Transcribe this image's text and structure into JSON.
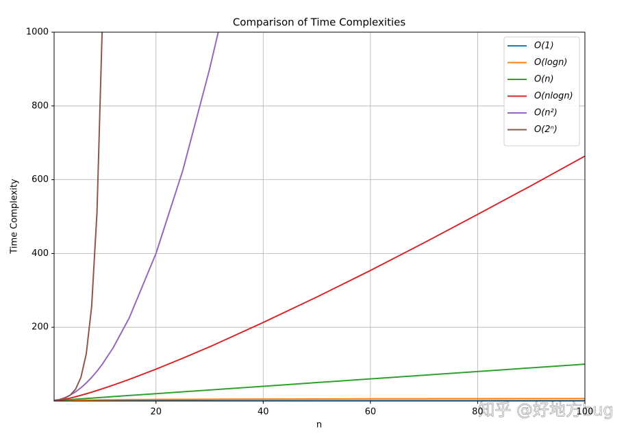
{
  "chart_data": {
    "type": "line",
    "title": "Comparison of Time Complexities",
    "x_label": "n",
    "y_label": "Time Complexity",
    "x": [
      1,
      2,
      3,
      4,
      5,
      6,
      7,
      8,
      9,
      10,
      12,
      15,
      20,
      25,
      30,
      32,
      40,
      50,
      60,
      70,
      80,
      90,
      100
    ],
    "series": [
      {
        "name": "O(1)",
        "color": "#1f77b4",
        "values": [
          1,
          1,
          1,
          1,
          1,
          1,
          1,
          1,
          1,
          1,
          1,
          1,
          1,
          1,
          1,
          1,
          1,
          1,
          1,
          1,
          1,
          1,
          1
        ]
      },
      {
        "name": "O(logn)",
        "color": "#ff7f0e",
        "values": [
          0,
          1,
          1.58,
          2,
          2.32,
          2.58,
          2.81,
          3,
          3.17,
          3.32,
          3.58,
          3.91,
          4.32,
          4.64,
          4.91,
          5,
          5.32,
          5.64,
          5.91,
          6.13,
          6.32,
          6.49,
          6.64
        ]
      },
      {
        "name": "O(n)",
        "color": "#2ca02c",
        "values": [
          1,
          2,
          3,
          4,
          5,
          6,
          7,
          8,
          9,
          10,
          12,
          15,
          20,
          25,
          30,
          32,
          40,
          50,
          60,
          70,
          80,
          90,
          100
        ]
      },
      {
        "name": "O(nlogn)",
        "color": "#d62728",
        "values": [
          0,
          2,
          4.75,
          8,
          11.6,
          15.5,
          19.7,
          24,
          28.5,
          33.2,
          43,
          58.6,
          86.4,
          116,
          147,
          160,
          213,
          282,
          354,
          429,
          506,
          584,
          664
        ]
      },
      {
        "name": "O(n²)",
        "color": "#9467bd",
        "values": [
          1,
          4,
          9,
          16,
          25,
          36,
          49,
          64,
          81,
          100,
          144,
          225,
          400,
          625,
          900,
          1024,
          null,
          null,
          null,
          null,
          null,
          null,
          null
        ]
      },
      {
        "name": "O(2ⁿ)",
        "color": "#8c564b",
        "values": [
          2,
          4,
          8,
          16,
          32,
          64,
          128,
          256,
          512,
          1024,
          null,
          null,
          null,
          null,
          null,
          null,
          null,
          null,
          null,
          null,
          null,
          null,
          null
        ]
      }
    ],
    "xlim": [
      1,
      100
    ],
    "ylim": [
      0,
      1000
    ],
    "xticks": [
      20,
      40,
      60,
      80,
      100
    ],
    "yticks": [
      200,
      400,
      600,
      800,
      1000
    ],
    "grid": true,
    "legend": "upper right"
  },
  "watermark": "知乎 @好地方bug"
}
